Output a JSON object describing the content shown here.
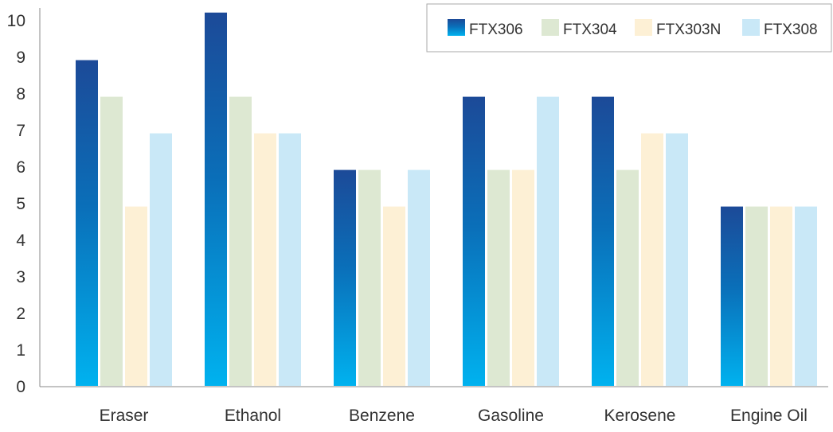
{
  "chart_data": {
    "type": "bar",
    "categories": [
      "Eraser",
      "Ethanol",
      "Benzene",
      "Gasoline",
      "Kerosene",
      "Engine Oil"
    ],
    "series": [
      {
        "name": "FTX306",
        "values": [
          8.9,
          10.2,
          5.9,
          7.9,
          7.9,
          4.9
        ],
        "color": "#0b5aa6",
        "gradient": [
          "#1c4a98",
          "#0a6fb9",
          "#00b2ef"
        ]
      },
      {
        "name": "FTX304",
        "values": [
          7.9,
          7.9,
          5.9,
          5.9,
          5.9,
          4.9
        ],
        "color": "#dde8d2"
      },
      {
        "name": "FTX303N",
        "values": [
          4.9,
          6.9,
          4.9,
          5.9,
          6.9,
          4.9
        ],
        "color": "#fdf0d5"
      },
      {
        "name": "FTX308",
        "values": [
          6.9,
          6.9,
          5.9,
          7.9,
          6.9,
          4.9
        ],
        "color": "#c9e8f7"
      }
    ],
    "yticks": [
      0,
      1,
      2,
      3,
      4,
      5,
      6,
      7,
      8,
      9,
      10
    ],
    "ylim": [
      0,
      10.5
    ],
    "grid": false,
    "legend_position": "top-right",
    "title": "",
    "xlabel": "",
    "ylabel": ""
  }
}
